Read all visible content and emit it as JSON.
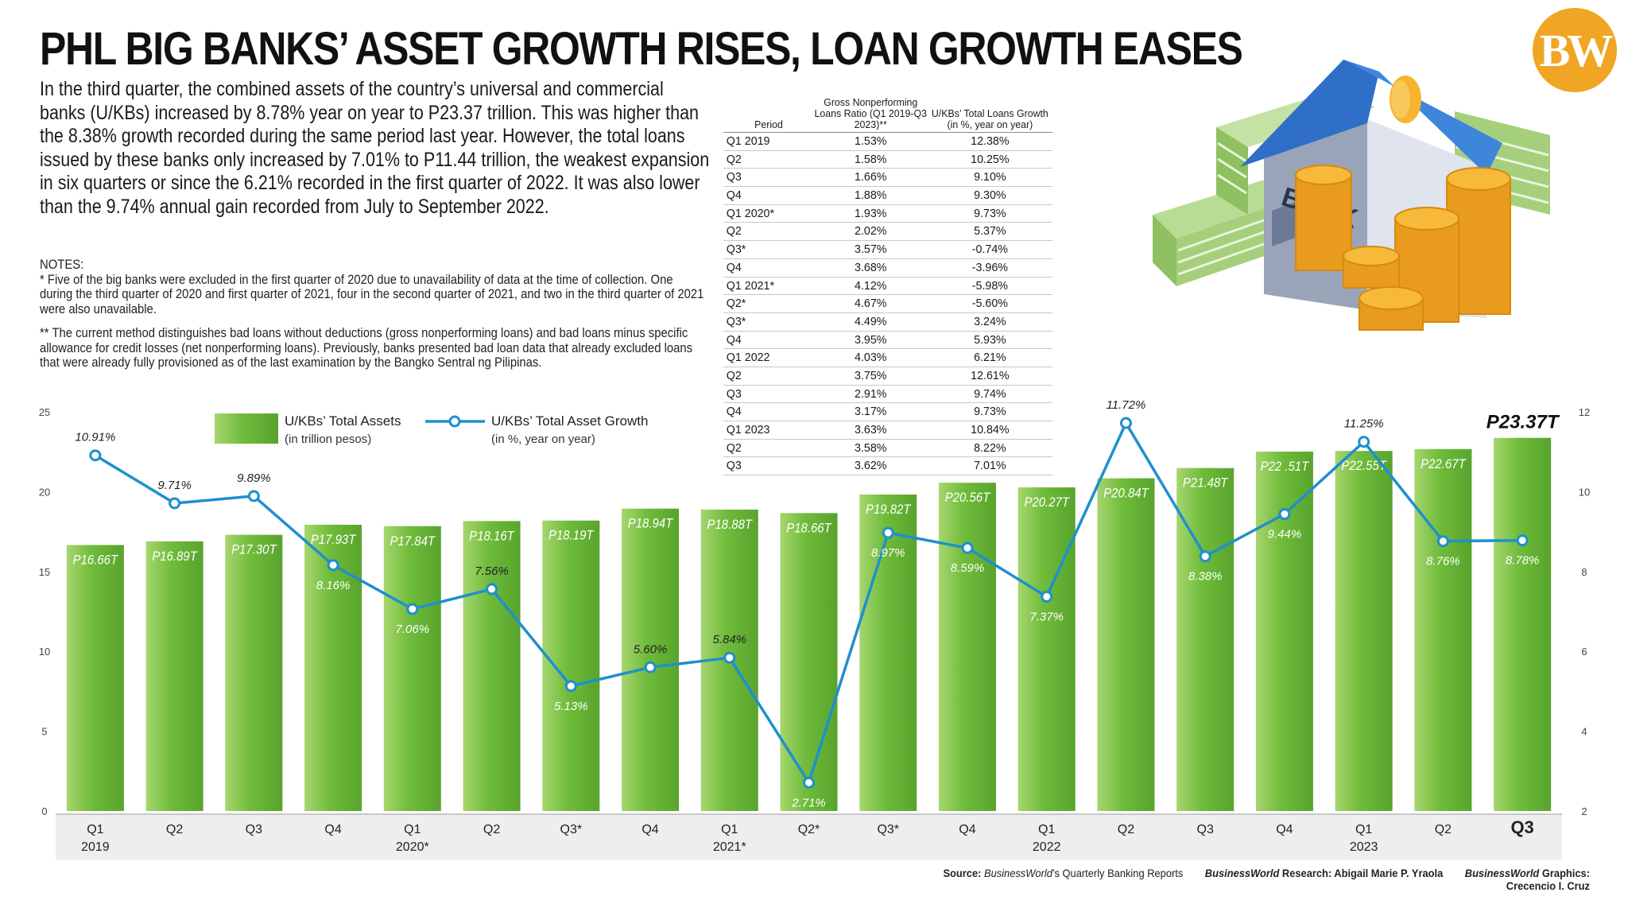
{
  "title": "PHL BIG BANKS’ ASSET GROWTH RISES, LOAN GROWTH EASES",
  "logo_text": "BW",
  "intro": "In the third quarter, the combined assets of the country’s universal and commercial banks (U/KBs) increased by 8.78% year on year to P23.37 trillion. This was higher than the 8.38% growth recorded during the same period last year. However, the total loans issued by these banks only increased by 7.01% to P11.44 trillion, the weakest expansion in six quarters or since the 6.21% recorded in the first quarter of 2022. It was also lower than the 9.74% annual gain recorded from July to September 2022.",
  "notes": {
    "heading": "NOTES:",
    "note1": "* Five of the big banks were excluded in the first quarter of 2020 due to unavailability of data at the time of collection. One during the third quarter of 2020 and first quarter of 2021, four in the second quarter of 2021, and two in the third quarter of 2021 were also unavailable.",
    "note2": "** The current method distinguishes bad loans without deductions (gross nonperforming loans) and bad loans minus specific allowance for credit losses (net nonperforming loans). Previously, banks presented bad loan data that already excluded loans that were already fully provisioned as of the last examination by the Bangko Sentral ng Pilipinas."
  },
  "table": {
    "headers": [
      "Period",
      "Gross Nonperforming Loans Ratio (Q1 2019-Q3 2023)**",
      "U/KBs’ Total Loans Growth (in %, year on year)"
    ],
    "rows": [
      [
        "Q1 2019",
        "1.53%",
        "12.38%"
      ],
      [
        "Q2",
        "1.58%",
        "10.25%"
      ],
      [
        "Q3",
        "1.66%",
        "9.10%"
      ],
      [
        "Q4",
        "1.88%",
        "9.30%"
      ],
      [
        "Q1 2020*",
        "1.93%",
        "9.73%"
      ],
      [
        "Q2",
        "2.02%",
        "5.37%"
      ],
      [
        "Q3*",
        "3.57%",
        "-0.74%"
      ],
      [
        "Q4",
        "3.68%",
        "-3.96%"
      ],
      [
        "Q1 2021*",
        "4.12%",
        "-5.98%"
      ],
      [
        "Q2*",
        "4.67%",
        "-5.60%"
      ],
      [
        "Q3*",
        "4.49%",
        "3.24%"
      ],
      [
        "Q4",
        "3.95%",
        "5.93%"
      ],
      [
        "Q1 2022",
        "4.03%",
        "6.21%"
      ],
      [
        "Q2",
        "3.75%",
        "12.61%"
      ],
      [
        "Q3",
        "2.91%",
        "9.74%"
      ],
      [
        "Q4",
        "3.17%",
        "9.73%"
      ],
      [
        "Q1 2023",
        "3.63%",
        "10.84%"
      ],
      [
        "Q2",
        "3.58%",
        "8.22%"
      ],
      [
        "Q3",
        "3.62%",
        "7.01%"
      ]
    ]
  },
  "illustration": {
    "bank_sign": "BANK"
  },
  "chart_data": {
    "type": "bar",
    "categories": [
      "Q1 2019",
      "Q2",
      "Q3",
      "Q4",
      "Q1 2020*",
      "Q2",
      "Q3*",
      "Q4",
      "Q1 2021*",
      "Q2*",
      "Q3*",
      "Q4",
      "Q1 2022",
      "Q2",
      "Q3",
      "Q4",
      "Q1 2023",
      "Q2",
      "Q3"
    ],
    "x_tick_labels": [
      [
        "Q1",
        "2019"
      ],
      [
        "Q2",
        ""
      ],
      [
        "Q3",
        ""
      ],
      [
        "Q4",
        ""
      ],
      [
        "Q1",
        "2020*"
      ],
      [
        "Q2",
        ""
      ],
      [
        "Q3*",
        ""
      ],
      [
        "Q4",
        ""
      ],
      [
        "Q1",
        "2021*"
      ],
      [
        "Q2*",
        ""
      ],
      [
        "Q3*",
        ""
      ],
      [
        "Q4",
        ""
      ],
      [
        "Q1",
        "2022"
      ],
      [
        "Q2",
        ""
      ],
      [
        "Q3",
        ""
      ],
      [
        "Q4",
        ""
      ],
      [
        "Q1",
        "2023"
      ],
      [
        "Q2",
        ""
      ],
      [
        "Q3",
        ""
      ]
    ],
    "series": [
      {
        "name": "U/KBs’ Total Assets",
        "name_sub": "(in trillion pesos)",
        "kind": "bar",
        "axis": "left",
        "color": "#7cc242",
        "values": [
          16.66,
          16.89,
          17.3,
          17.93,
          17.84,
          18.16,
          18.19,
          18.94,
          18.88,
          18.66,
          19.82,
          20.56,
          20.27,
          20.84,
          21.48,
          22.51,
          22.55,
          22.67,
          23.37
        ],
        "labels": [
          "P16.66T",
          "P16.89T",
          "P17.30T",
          "P17.93T",
          "P17.84T",
          "P18.16T",
          "P18.19T",
          "P18.94T",
          "P18.88T",
          "P18.66T",
          "P19.82T",
          "P20.56T",
          "P20.27T",
          "P20.84T",
          "P21.48T",
          "P22 .51T",
          "P22.55T",
          "P22.67T",
          "P23.37T"
        ]
      },
      {
        "name": "U/KBs’ Total Asset Growth",
        "name_sub": "(in %, year on year)",
        "kind": "line",
        "axis": "right",
        "color": "#1f8fce",
        "values": [
          10.91,
          9.71,
          9.89,
          8.16,
          7.06,
          7.56,
          5.13,
          5.6,
          5.84,
          2.71,
          8.97,
          8.59,
          7.37,
          11.72,
          8.38,
          9.44,
          11.25,
          8.76,
          8.78
        ],
        "labels": [
          "10.91%",
          "9.71%",
          "9.89%",
          "8.16%",
          "7.06%",
          "7.56%",
          "5.13%",
          "5.60%",
          "5.84%",
          "2.71%",
          "8.97%",
          "8.59%",
          "7.37%",
          "11.72%",
          "8.38%",
          "9.44%",
          "11.25%",
          "8.76%",
          "8.78%"
        ]
      }
    ],
    "y_left": {
      "ylim": [
        0,
        25
      ],
      "ticks": [
        "0",
        "5",
        "10",
        "15",
        "20",
        "25"
      ]
    },
    "y_right": {
      "ylim": [
        2,
        12
      ],
      "ticks": [
        "2",
        "4",
        "6",
        "8",
        "10",
        "12"
      ]
    },
    "grid": false,
    "legend": "top-left"
  },
  "footer": {
    "source_label": "Source:",
    "source_italic": "BusinessWorld",
    "source_rest": "’s Quarterly Banking Reports",
    "research_italic": "BusinessWorld",
    "research_rest": " Research: Abigail Marie P. Yraola",
    "graphics_italic": "BusinessWorld",
    "graphics_rest": " Graphics: Crecencio I. Cruz"
  },
  "colors": {
    "bar": "#7cc242",
    "bar_dark": "#5aa531",
    "line": "#1f8fce",
    "logo": "#f0a524"
  }
}
